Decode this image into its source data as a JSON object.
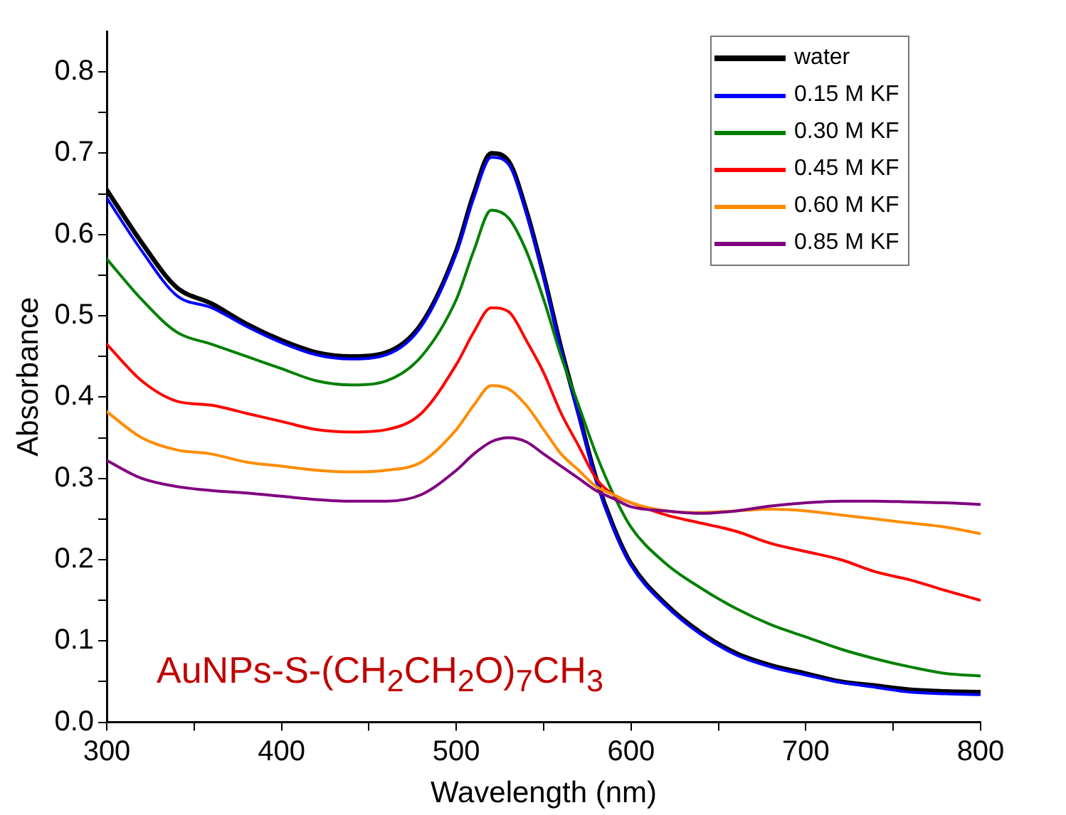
{
  "chart_data": {
    "type": "line",
    "xlabel": "Wavelength (nm)",
    "ylabel": "Absorbance",
    "xlim": [
      300,
      800
    ],
    "ylim": [
      0,
      0.85
    ],
    "xticks": [
      300,
      {
        "value": 350,
        "label": null
      },
      400,
      {
        "value": 450,
        "label": null
      },
      500,
      {
        "value": 550,
        "label": null
      },
      600,
      {
        "value": 650,
        "label": null
      },
      700,
      {
        "value": 750,
        "label": null
      },
      800
    ],
    "yticks": [
      {
        "value": 0,
        "label": "0.0"
      },
      {
        "value": 0.05,
        "label": null
      },
      0.1,
      {
        "value": 0.15,
        "label": null
      },
      0.2,
      {
        "value": 0.25,
        "label": null
      },
      0.3,
      {
        "value": 0.35,
        "label": null
      },
      0.4,
      {
        "value": 0.45,
        "label": null
      },
      0.5,
      {
        "value": 0.55,
        "label": null
      },
      0.6,
      {
        "value": 0.65,
        "label": null
      },
      0.7,
      {
        "value": 0.75,
        "label": null
      },
      0.8
    ],
    "grid": false,
    "legend": "top right",
    "marker": "none",
    "line_style": "solid",
    "annotations": [
      "AuNPs-S-(CH$_{2}$CH$_{2}$O)$_{7}$CH$_{3}$"
    ],
    "x": [
      300,
      320,
      340,
      360,
      380,
      400,
      420,
      440,
      460,
      480,
      500,
      510,
      520,
      530,
      540,
      550,
      560,
      570,
      580,
      590,
      600,
      620,
      640,
      660,
      680,
      700,
      720,
      740,
      760,
      780,
      800
    ],
    "series": [
      {
        "name": "water",
        "color": "#000000",
        "values": [
          0.655,
          0.59,
          0.535,
          0.515,
          0.49,
          0.47,
          0.455,
          0.45,
          0.455,
          0.49,
          0.58,
          0.65,
          0.7,
          0.69,
          0.63,
          0.55,
          0.46,
          0.38,
          0.3,
          0.24,
          0.195,
          0.145,
          0.11,
          0.085,
          0.07,
          0.06,
          0.05,
          0.045,
          0.04,
          0.038,
          0.037
        ]
      },
      {
        "name": "0.15 M KF",
        "color": "#0000ff",
        "values": [
          0.645,
          0.58,
          0.525,
          0.51,
          0.487,
          0.467,
          0.452,
          0.447,
          0.452,
          0.487,
          0.577,
          0.645,
          0.695,
          0.686,
          0.627,
          0.548,
          0.458,
          0.378,
          0.298,
          0.238,
          0.193,
          0.143,
          0.108,
          0.083,
          0.068,
          0.058,
          0.049,
          0.043,
          0.037,
          0.035,
          0.034
        ]
      },
      {
        "name": "0.30 M KF",
        "color": "#008000",
        "values": [
          0.57,
          0.52,
          0.48,
          0.465,
          0.45,
          0.435,
          0.42,
          0.415,
          0.42,
          0.45,
          0.52,
          0.58,
          0.63,
          0.62,
          0.58,
          0.52,
          0.45,
          0.39,
          0.33,
          0.28,
          0.24,
          0.195,
          0.165,
          0.14,
          0.12,
          0.105,
          0.09,
          0.078,
          0.068,
          0.06,
          0.057
        ]
      },
      {
        "name": "0.45 M KF",
        "color": "#ff0000",
        "values": [
          0.465,
          0.42,
          0.395,
          0.39,
          0.38,
          0.37,
          0.36,
          0.357,
          0.36,
          0.38,
          0.44,
          0.48,
          0.51,
          0.505,
          0.47,
          0.43,
          0.38,
          0.34,
          0.3,
          0.28,
          0.27,
          0.255,
          0.245,
          0.235,
          0.22,
          0.21,
          0.2,
          0.185,
          0.175,
          0.162,
          0.15
        ]
      },
      {
        "name": "0.60 M KF",
        "color": "#ff8c00",
        "values": [
          0.382,
          0.35,
          0.335,
          0.33,
          0.32,
          0.315,
          0.31,
          0.308,
          0.31,
          0.32,
          0.36,
          0.39,
          0.414,
          0.41,
          0.39,
          0.36,
          0.33,
          0.31,
          0.29,
          0.28,
          0.27,
          0.26,
          0.258,
          0.26,
          0.262,
          0.26,
          0.255,
          0.25,
          0.245,
          0.24,
          0.232
        ]
      },
      {
        "name": "0.85 M KF",
        "color": "#800080",
        "values": [
          0.322,
          0.3,
          0.29,
          0.285,
          0.282,
          0.278,
          0.274,
          0.272,
          0.272,
          0.28,
          0.31,
          0.33,
          0.345,
          0.35,
          0.345,
          0.33,
          0.315,
          0.3,
          0.285,
          0.275,
          0.265,
          0.26,
          0.257,
          0.26,
          0.266,
          0.27,
          0.272,
          0.272,
          0.271,
          0.27,
          0.268
        ]
      }
    ]
  }
}
